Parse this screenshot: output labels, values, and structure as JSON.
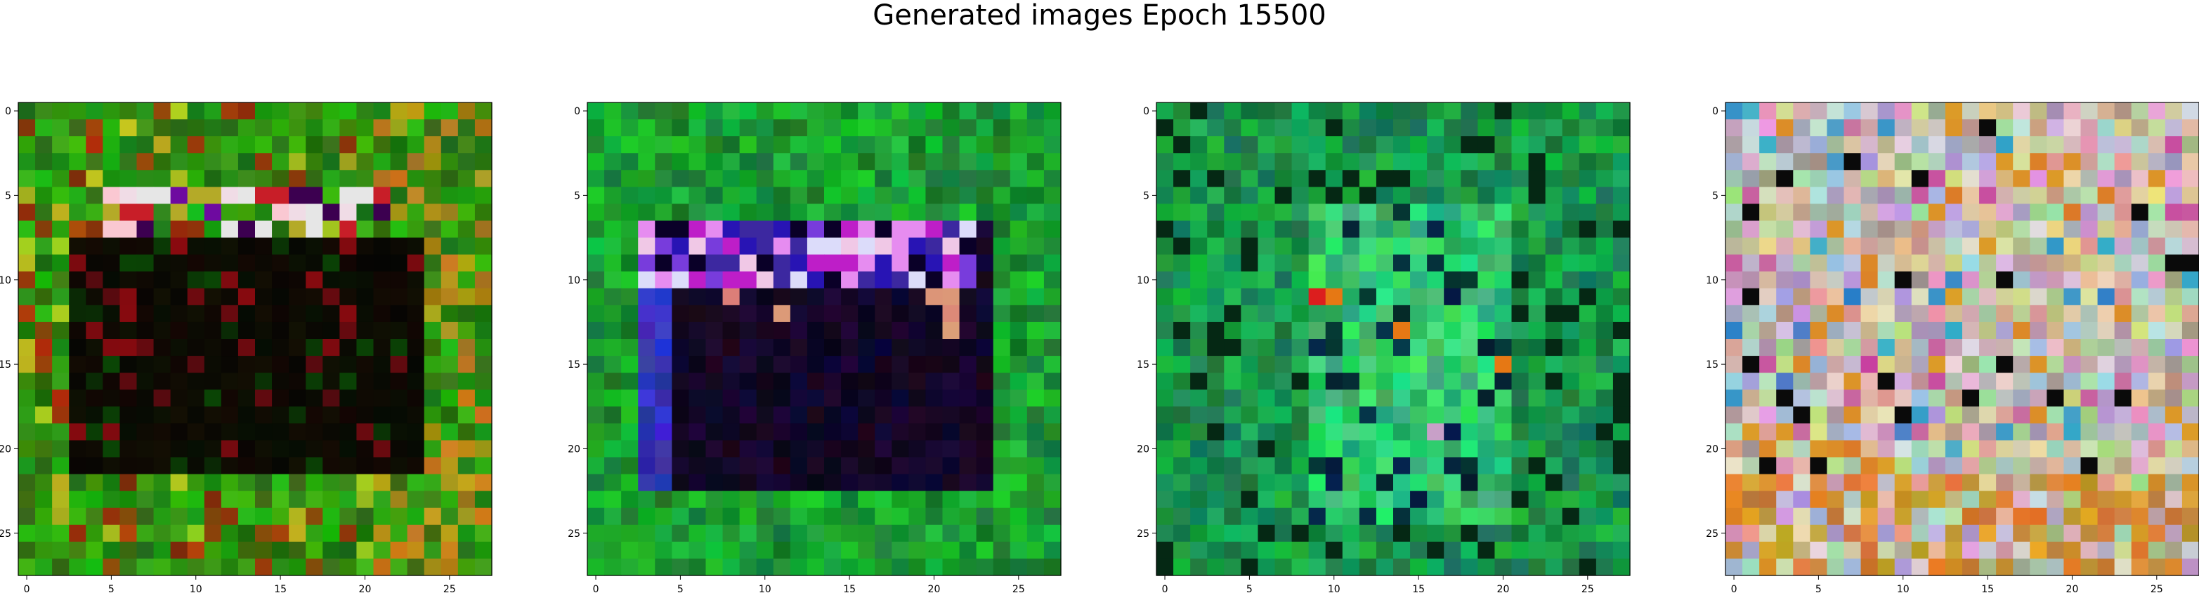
{
  "figure": {
    "title": "Generated images Epoch 15500"
  },
  "panels": [
    {
      "name": "generated-image-1",
      "description_colors": [
        "#2e8b1a",
        "#0b0606",
        "#b0a020",
        "#e8d8e8",
        "#6a0aa0"
      ],
      "x_ticks": [
        "0",
        "5",
        "10",
        "15",
        "20",
        "25"
      ],
      "y_ticks": [
        "0",
        "5",
        "10",
        "15",
        "20",
        "25"
      ]
    },
    {
      "name": "generated-image-2",
      "description_colors": [
        "#14a030",
        "#06040e",
        "#3020c0",
        "#e080f0",
        "#d8d8f8"
      ],
      "x_ticks": [
        "0",
        "5",
        "10",
        "15",
        "20",
        "25"
      ],
      "y_ticks": [
        "0",
        "5",
        "10",
        "15",
        "20",
        "25"
      ]
    },
    {
      "name": "generated-image-3",
      "description_colors": [
        "#0a8a38",
        "#1ac060",
        "#04202a",
        "#d01818",
        "#e0c060"
      ],
      "x_ticks": [
        "0",
        "5",
        "10",
        "15",
        "20",
        "25"
      ],
      "y_ticks": [
        "0",
        "5",
        "10",
        "15",
        "20",
        "25"
      ]
    },
    {
      "name": "generated-image-4",
      "description_colors": [
        "#c8a080",
        "#b0c0a0",
        "#d0a0c0",
        "#a0a0c0",
        "#d08030"
      ],
      "x_ticks": [
        "0",
        "5",
        "10",
        "15",
        "20",
        "25"
      ],
      "y_ticks": [
        "0",
        "5",
        "10",
        "15",
        "20",
        "25"
      ]
    }
  ],
  "pixel_grid": {
    "rows": 28,
    "cols": 28
  }
}
